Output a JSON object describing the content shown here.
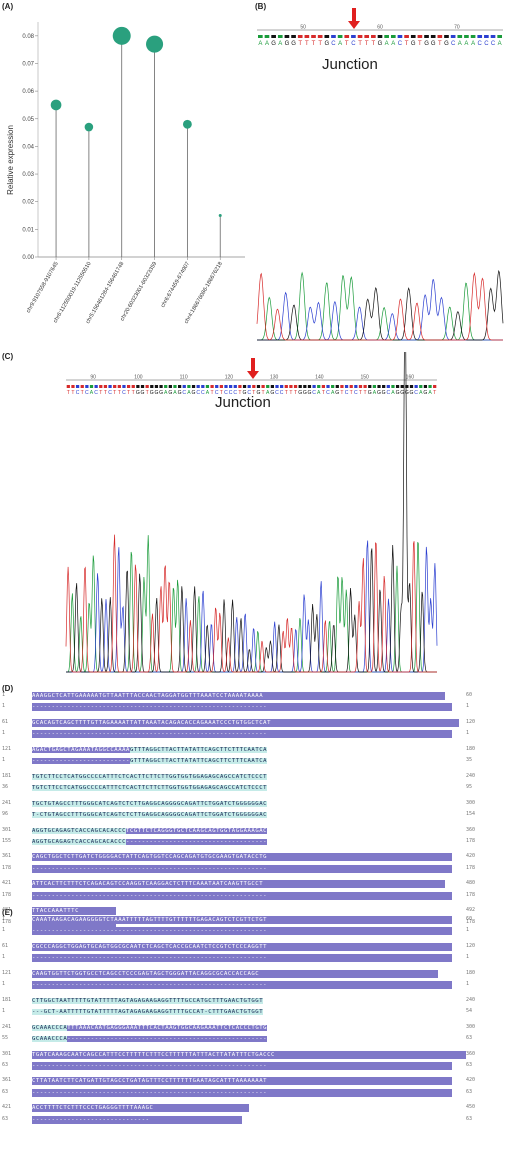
{
  "panels": {
    "A": "(A)",
    "B": "(B)",
    "C": "(C)",
    "D": "(D)",
    "E": "(E)"
  },
  "chart_data": {
    "type": "scatter",
    "ylabel": "Relative expression",
    "ylim": [
      0,
      0.085
    ],
    "yticks": [
      "0.00",
      "0.01",
      "0.02",
      "0.03",
      "0.04",
      "0.05",
      "0.06",
      "0.07",
      "0.08"
    ],
    "categories": [
      "chr9:9107558-9107645",
      "chr6:112550019-112550510",
      "chr5:156461284-156461748",
      "chr20:60323001-60323359",
      "chr6:674459-674907",
      "chr4:186676086-186676218"
    ],
    "values": [
      0.055,
      0.047,
      0.08,
      0.077,
      0.048,
      0.015
    ],
    "marker_color": "#2aa07e"
  },
  "chromatogram_b": {
    "label": "Junction",
    "ruler": [
      "50",
      "60",
      "70"
    ],
    "bases": "AAGAGGTTTTGCATCTTTGAACTGTGGTGCAAACCCA"
  },
  "chromatogram_c": {
    "label": "Junction",
    "ruler": [
      "90",
      "100",
      "110",
      "120",
      "130",
      "140",
      "150",
      "160"
    ],
    "bases": "TTCTCACTTCTTCTTGGTGGGAGAGCAGCCATCTCCCTGCTGTAGCCTTTGGGCATCAGTCTCTTGAGGCAGGGGCAGAT"
  },
  "alignment_d": {
    "rows": [
      {
        "n1": "1",
        "s1": "AAAGGCTCATTGAAAAATGTTAATTTACCAACTAGGATGGTTTAAATCCTAAAATAAAA",
        "e1": "60",
        "n2": "1",
        "s2": "------------------------------------------------------------",
        "e2": "1"
      },
      {
        "n1": "61",
        "s1": "GCACAGTCAGCTTTTGTTAGAAAATTATTAAATACAGACACCAGAAATCCCTGTGGCTCAT",
        "e1": "120",
        "n2": "1",
        "s2": "------------------------------------------------------------",
        "e2": "1"
      },
      {
        "n1": "121",
        "s1": "AGACTGAGCTAGAAATAGGCCAAAAGTTTAGGCTTACTTATATTCAGCTTCTTTCAATCA",
        "e1": "180",
        "n2": "1",
        "s2": "-------------------------GTTTAGGCTTACTTATATTCAGCTTCTTTCAATCA",
        "e2": "35",
        "split": 25
      },
      {
        "n1": "181",
        "s1": "TGTCTTCCTCATGGCCCCATTTCTCACTTCTTCTTGGTGGTGGAGAGCAGCCATCTCCCT",
        "e1": "240",
        "n2": "36",
        "s2": "TGTCTTCCTCATGGCCCCATTTCTCACTTCTTCTTGGTGGTGGAGAGCAGCCATCTCCCT",
        "e2": "95",
        "split": 0
      },
      {
        "n1": "241",
        "s1": "TGCTGTAGCCTTTGGGCATCAGTCTCTTGAGGCAGGGGCAGATTCTGGATCTGGGGGGAC",
        "e1": "300",
        "n2": "96",
        "s2": "T-CTGTAGCCTTTGGGCATCAGTCTCTTGAGGCAGGGGCAGATTCTGGATCTGGGGGGAC",
        "e2": "154",
        "split": 0
      },
      {
        "n1": "301",
        "s1": "AGGTGCAGAGTCACCAGCACACCCTCGTTCTCAGGGTGCTCAAGCAGTGGTAGGAAAGAC",
        "e1": "360",
        "n2": "155",
        "s2": "AGGTGCAGAGTCACCAGCACACCC------------------------------------",
        "e2": "178",
        "split": 0,
        "end": 24
      },
      {
        "n1": "361",
        "s1": "CAGCTGGCTCTTGATCTGGGGACTATTCAGTGGTCCAGCAGATGTGCGAAGTGATACCTG",
        "e1": "420",
        "n2": "178",
        "s2": "------------------------------------------------------------",
        "e2": "178"
      },
      {
        "n1": "421",
        "s1": "ATTCACTTCTTTCTCAGACAGTCCAAGGTCAAGGACTCTTTCAAATAATCAAGTTGCCT",
        "e1": "480",
        "n2": "178",
        "s2": "------------------------------------------------------------",
        "e2": "178"
      },
      {
        "n1": "481",
        "s1": "TTACCAAATTTC",
        "e1": "492",
        "n2": "178",
        "s2": "------------",
        "e2": "178"
      }
    ]
  },
  "alignment_e": {
    "rows": [
      {
        "n1": "1",
        "s1": "CAAATAAGACAGAAGGGGTCTAAATTTTTAGTTTTGTTTTTTGAGACAGTCTCGTTCTGT",
        "e1": "60",
        "n2": "1",
        "s2": "------------------------------------------------------------",
        "e2": "1"
      },
      {
        "n1": "61",
        "s1": "CGCCCAGGCTGGAGTGCAGTGGCGCAATCTCAGCTCACCGCAATCTCCGTCTCCCAGGTT",
        "e1": "120",
        "n2": "1",
        "s2": "------------------------------------------------------------",
        "e2": "1"
      },
      {
        "n1": "121",
        "s1": "CAAGTGGTTCTGGTGCCTCAGCCTCCCGAGTAGCTGGGATTACAGGCGCACCACCAGC",
        "e1": "180",
        "n2": "1",
        "s2": "------------------------------------------------------------",
        "e2": "1"
      },
      {
        "n1": "181",
        "s1": "CTTGGCTAATTTTTGTATTTTTAGTAGAGAAGAGGTTTTGCCATGCTTTGAACTGTGGT",
        "e1": "240",
        "n2": "1",
        "s2": "---GCT-AATTTTTGTATTTTTAGTAGAGAAGAGGTTTTGCCAT-CTTTGAACTGTGGT",
        "e2": "54",
        "split": 0
      },
      {
        "n1": "241",
        "s1": "GCAAACCCATTTAAACAATGAGGGAAATTTCACTAAGTGGCAAGAAATTCTCACCCTGTG",
        "e1": "300",
        "n2": "55",
        "s2": "GCAAACCCA---------------------------------------------------",
        "e2": "63",
        "split": 0,
        "end": 9
      },
      {
        "n1": "301",
        "s1": "TGATCAAAGCAATCAGCCATTTCCTTTTTCTTTCCTTTTTTATTTACTTATATTTCTGACCC",
        "e1": "360",
        "n2": "63",
        "s2": "------------------------------------------------------------",
        "e2": "63"
      },
      {
        "n1": "361",
        "s1": "CTTATAATCTTCATGATTGTAGCCTGATAGTTTCCTTTTTTGAATAGCATTTAAAAAAAT",
        "e1": "420",
        "n2": "63",
        "s2": "------------------------------------------------------------",
        "e2": "63"
      },
      {
        "n1": "421",
        "s1": "ACCTTTTCTCTTTCCCTGAGGGTTTTAAAGC",
        "e1": "450",
        "n2": "63",
        "s2": "------------------------------",
        "e2": "63"
      }
    ]
  }
}
